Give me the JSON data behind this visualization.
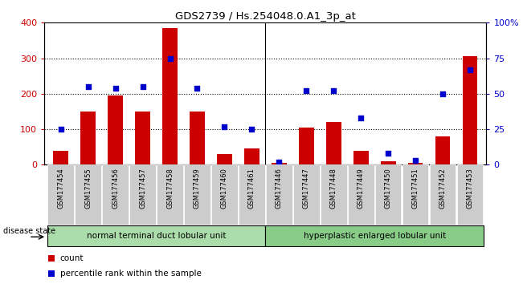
{
  "title": "GDS2739 / Hs.254048.0.A1_3p_at",
  "categories": [
    "GSM177454",
    "GSM177455",
    "GSM177456",
    "GSM177457",
    "GSM177458",
    "GSM177459",
    "GSM177460",
    "GSM177461",
    "GSM177446",
    "GSM177447",
    "GSM177448",
    "GSM177449",
    "GSM177450",
    "GSM177451",
    "GSM177452",
    "GSM177453"
  ],
  "counts": [
    40,
    150,
    195,
    150,
    385,
    150,
    30,
    45,
    5,
    105,
    120,
    40,
    10,
    5,
    80,
    305
  ],
  "percentiles": [
    25,
    55,
    54,
    55,
    75,
    54,
    27,
    25,
    2,
    52,
    52,
    33,
    8,
    3,
    50,
    67
  ],
  "group1_label": "normal terminal duct lobular unit",
  "group2_label": "hyperplastic enlarged lobular unit",
  "group1_indices": [
    0,
    7
  ],
  "group2_indices": [
    8,
    15
  ],
  "disease_state_label": "disease state",
  "count_label": "count",
  "percentile_label": "percentile rank within the sample",
  "ylim_left": [
    0,
    400
  ],
  "ylim_right": [
    0,
    100
  ],
  "yticks_left": [
    0,
    100,
    200,
    300,
    400
  ],
  "yticks_right": [
    0,
    25,
    50,
    75,
    100
  ],
  "ytick_labels_right": [
    "0",
    "25",
    "50",
    "75",
    "100%"
  ],
  "bar_color": "#cc0000",
  "dot_color": "#0000cc",
  "bg_color": "#ffffff",
  "group1_color": "#aaddaa",
  "group2_color": "#88cc88",
  "xticklabel_bg": "#cccccc"
}
